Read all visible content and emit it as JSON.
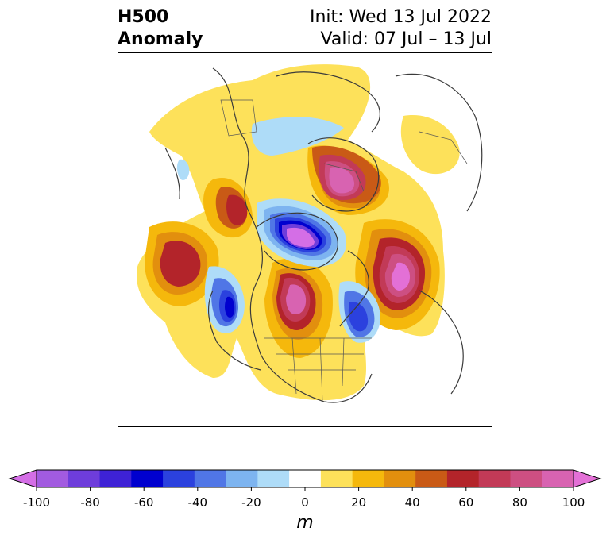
{
  "title": {
    "left_line1": "H500",
    "left_line2": "Anomaly",
    "right_line1": "Init: Wed 13 Jul 2022",
    "right_line2": "Valid: 07 Jul – 13 Jul"
  },
  "colorbar": {
    "unit": "m",
    "tick_labels": [
      "-100",
      "-80",
      "-60",
      "-40",
      "-20",
      "0",
      "20",
      "40",
      "60",
      "80",
      "100"
    ],
    "colors": [
      "#d46ee6",
      "#a25be0",
      "#6e3ddb",
      "#3e22d6",
      "#0000cf",
      "#2b41de",
      "#5076e6",
      "#7db4f0",
      "#aedcf8",
      "#ffffff",
      "#fde15a",
      "#f5b80c",
      "#e28f0e",
      "#c95a16",
      "#b3242a",
      "#c23a57",
      "#cd4f82",
      "#d863b1",
      "#e370d6"
    ],
    "range": [
      -100,
      100
    ],
    "extend": "both"
  }
}
